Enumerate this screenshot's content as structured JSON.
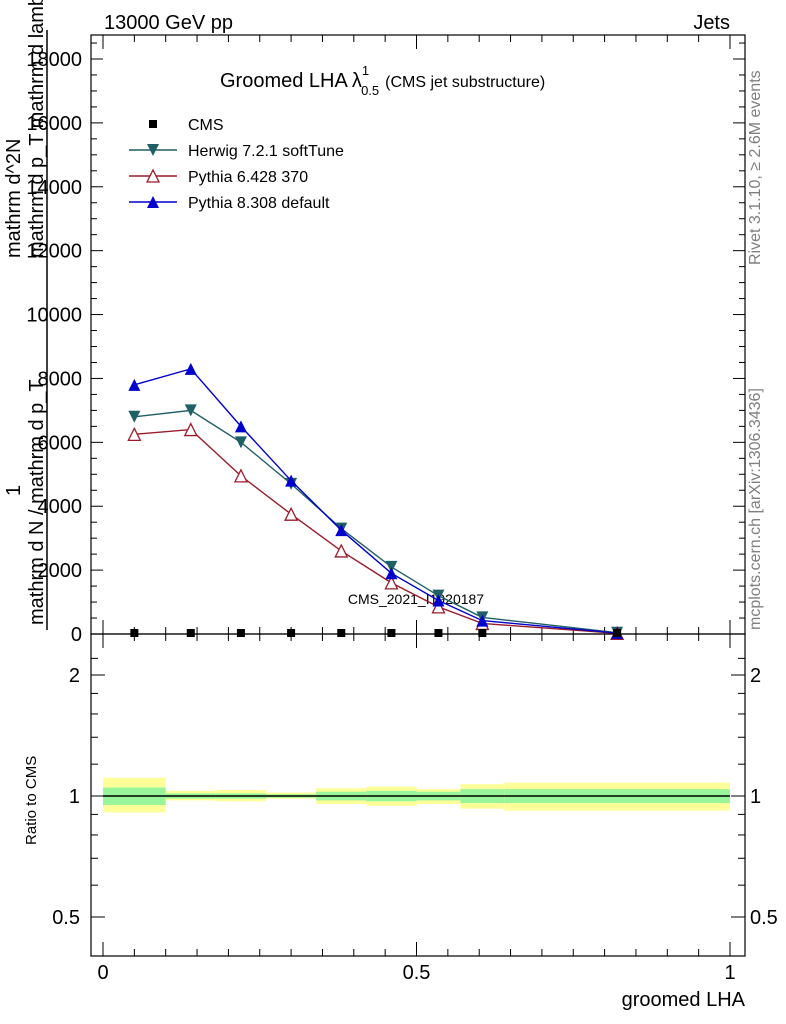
{
  "header": {
    "energy_label": "13000 GeV pp",
    "process_label": "Jets"
  },
  "side_labels": {
    "rivet": "Rivet 3.1.10, ≥ 2.6M events",
    "mcplots": "mcplots.cern.ch [arXiv:1306.3436]"
  },
  "watermark": "CMS_2021_I1920187",
  "colors": {
    "cms": "#000000",
    "herwig": "#1f5f66",
    "pythia6": "#9b1b2b",
    "pythia8": "#0000cc",
    "band_inner": "#99f599",
    "band_outer": "#ffff99"
  },
  "chart_data": [
    {
      "type": "line",
      "panel": "main",
      "title_main": "Groomed LHA",
      "title_lambda": "λ",
      "title_sup": "1",
      "title_sub": "0.5",
      "title_paren": "(CMS jet substructure)",
      "ylabel_parts": {
        "one": "1",
        "denominator": "mathrm d N / mathrm d p_T",
        "numerator": "mathrm d^2N",
        "numerator_sub": "mathrm d p_T mathrm d lambda"
      },
      "ylim": [
        0,
        18500
      ],
      "y_ticks": [
        "0",
        "2000",
        "4000",
        "6000",
        "8000",
        "10000",
        "12000",
        "14000",
        "16000",
        "18000"
      ],
      "grid": false,
      "legend_position": "top-left",
      "x": [
        0.05,
        0.14,
        0.22,
        0.3,
        0.38,
        0.46,
        0.535,
        0.605,
        0.82
      ],
      "series": [
        {
          "name": "CMS",
          "key": "cms",
          "marker": "square",
          "values": [
            0,
            0,
            0,
            0,
            0,
            0,
            0,
            0,
            0
          ]
        },
        {
          "name": "Herwig 7.2.1 softTune",
          "key": "herwig",
          "marker": "triangle-down",
          "values": [
            6800,
            7000,
            6000,
            4700,
            3300,
            2100,
            1200,
            520,
            40
          ]
        },
        {
          "name": "Pythia 6.428 370",
          "key": "pythia6",
          "marker": "triangle-up-open",
          "values": [
            6250,
            6400,
            4950,
            3750,
            2600,
            1600,
            850,
            330,
            20
          ]
        },
        {
          "name": "Pythia 8.308 default",
          "key": "pythia8",
          "marker": "triangle-up",
          "values": [
            7800,
            8300,
            6500,
            4800,
            3250,
            1900,
            1050,
            420,
            30
          ]
        }
      ]
    },
    {
      "type": "area",
      "panel": "ratio",
      "ylabel": "Ratio to CMS",
      "xlabel": "groomed LHA",
      "ylim": [
        0.45,
        2.3
      ],
      "y_ticks_left": [
        "0.5",
        "1",
        "2"
      ],
      "y_ticks_right": [
        "0.5",
        "1",
        "2"
      ],
      "x_ticks": [
        "0",
        "0.5",
        "1"
      ],
      "xlim": [
        0,
        1
      ],
      "reference_value": 1,
      "bins": [
        {
          "lo": 0.0,
          "hi": 0.1,
          "inner": [
            0.95,
            1.05
          ],
          "outer": [
            0.91,
            1.11
          ]
        },
        {
          "lo": 0.1,
          "hi": 0.18,
          "inner": [
            0.985,
            1.015
          ],
          "outer": [
            0.975,
            1.03
          ]
        },
        {
          "lo": 0.18,
          "hi": 0.26,
          "inner": [
            0.985,
            1.015
          ],
          "outer": [
            0.97,
            1.035
          ]
        },
        {
          "lo": 0.26,
          "hi": 0.34,
          "inner": [
            0.99,
            1.01
          ],
          "outer": [
            0.985,
            1.02
          ]
        },
        {
          "lo": 0.34,
          "hi": 0.42,
          "inner": [
            0.975,
            1.025
          ],
          "outer": [
            0.955,
            1.045
          ]
        },
        {
          "lo": 0.42,
          "hi": 0.5,
          "inner": [
            0.97,
            1.03
          ],
          "outer": [
            0.945,
            1.055
          ]
        },
        {
          "lo": 0.5,
          "hi": 0.57,
          "inner": [
            0.975,
            1.025
          ],
          "outer": [
            0.955,
            1.04
          ]
        },
        {
          "lo": 0.57,
          "hi": 0.64,
          "inner": [
            0.96,
            1.04
          ],
          "outer": [
            0.93,
            1.07
          ]
        },
        {
          "lo": 0.64,
          "hi": 1.0,
          "inner": [
            0.96,
            1.04
          ],
          "outer": [
            0.92,
            1.08
          ]
        }
      ]
    }
  ]
}
